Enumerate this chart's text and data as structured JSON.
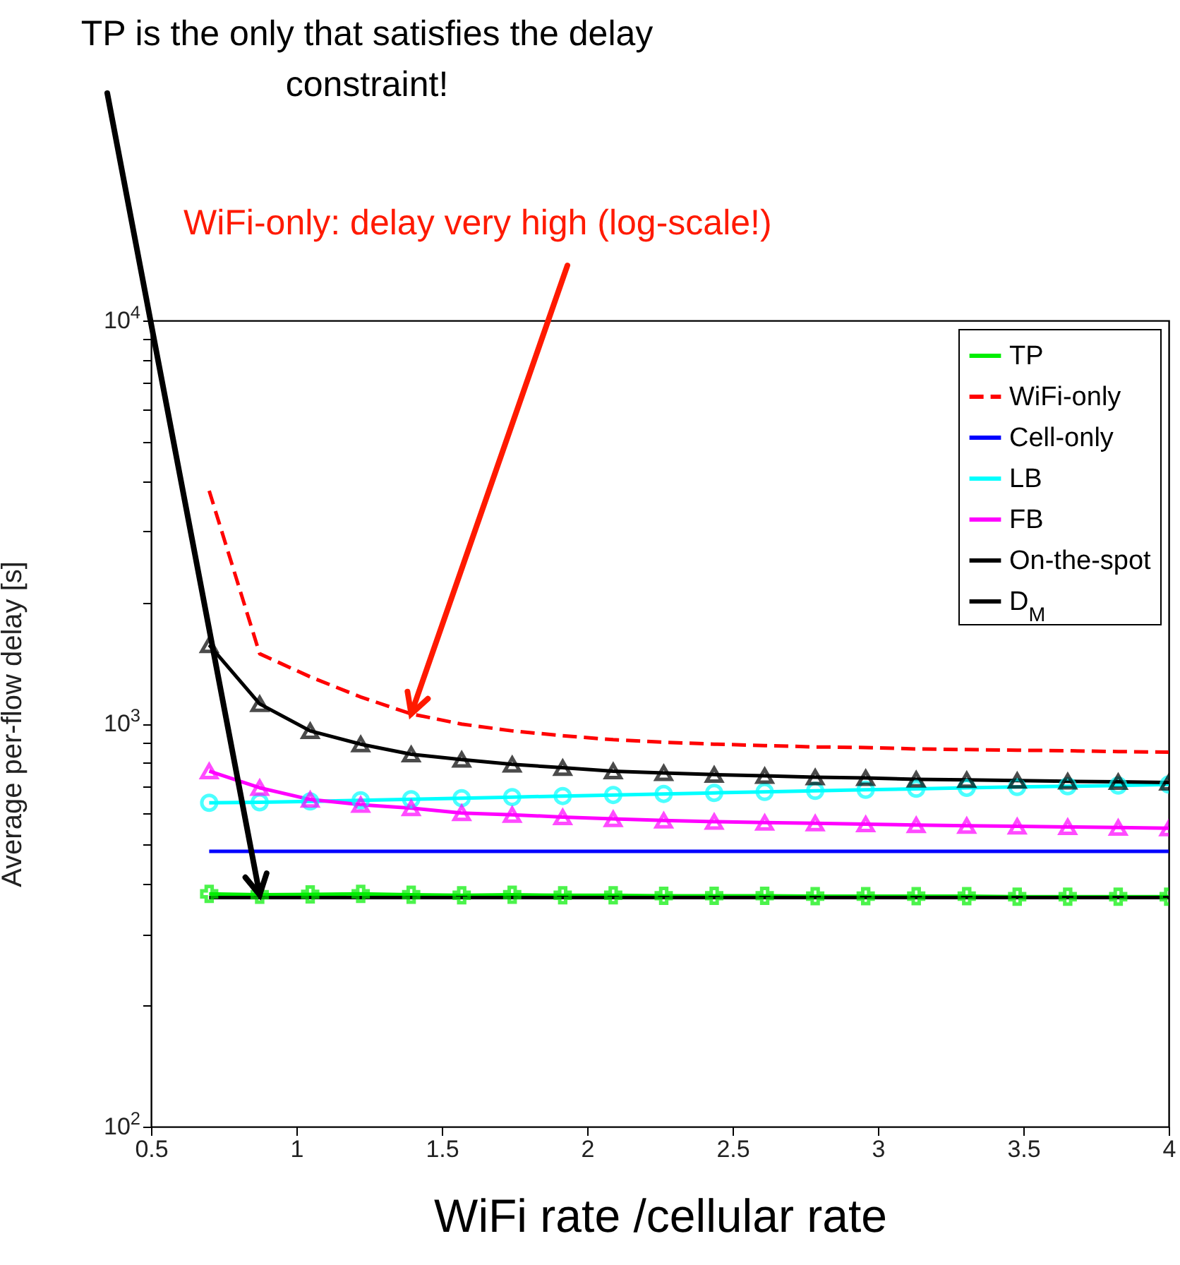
{
  "chart_data": {
    "type": "line",
    "xlabel": "WiFi rate /cellular rate",
    "ylabel": "Average per-flow delay [s]",
    "x": [
      0.7,
      0.8737,
      1.0474,
      1.2211,
      1.3947,
      1.5684,
      1.7421,
      1.9158,
      2.0895,
      2.2632,
      2.4368,
      2.6105,
      2.7842,
      2.9579,
      3.1316,
      3.3053,
      3.4789,
      3.6526,
      3.8263,
      4.0
    ],
    "series": [
      {
        "name": "TP",
        "color": "#00ee00",
        "marker": "cross",
        "line_style": "solid",
        "values": [
          378,
          376,
          377,
          378,
          376,
          375,
          376,
          375,
          375,
          374,
          374,
          374,
          373,
          373,
          373,
          373,
          372,
          372,
          372,
          372
        ]
      },
      {
        "name": "WiFi-only",
        "color": "#ff0000",
        "marker": "none",
        "line_style": "dashed",
        "values": [
          3780,
          1490,
          1306,
          1164,
          1057,
          997,
          959,
          933,
          912,
          899,
          889,
          882,
          875,
          872,
          865,
          862,
          859,
          856,
          852,
          849
        ]
      },
      {
        "name": "Cell-only",
        "color": "#0000ff",
        "marker": "none",
        "line_style": "solid",
        "values": [
          482,
          482,
          482,
          482,
          482,
          482,
          482,
          482,
          482,
          482,
          482,
          482,
          482,
          482,
          482,
          482,
          482,
          482,
          482,
          482
        ]
      },
      {
        "name": "LB",
        "color": "#00ffff",
        "marker": "circle",
        "line_style": "solid",
        "values": [
          636,
          638,
          641,
          645,
          649,
          653,
          657,
          661,
          665,
          669,
          673,
          677,
          681,
          685,
          689,
          693,
          696,
          699,
          702,
          706
        ]
      },
      {
        "name": "FB",
        "color": "#ff00ff",
        "marker": "triangle",
        "line_style": "solid",
        "values": [
          762,
          693,
          648,
          629,
          617,
          600,
          594,
          586,
          580,
          575,
          571,
          568,
          566,
          563,
          560,
          558,
          556,
          554,
          552,
          550
        ]
      },
      {
        "name": "On-the-spot",
        "color": "#000000",
        "marker": "triangle",
        "line_style": "solid",
        "values": [
          1567,
          1119,
          959,
          889,
          839,
          814,
          792,
          777,
          762,
          754,
          747,
          742,
          736,
          733,
          727,
          725,
          722,
          719,
          717,
          714
        ]
      },
      {
        "name": "D$_{M}$",
        "color": "#000000",
        "marker": "none",
        "line_style": "solid",
        "values": [
          370,
          370,
          370,
          370,
          370,
          370,
          370,
          370,
          370,
          370,
          370,
          370,
          370,
          370,
          370,
          370,
          370,
          370,
          370,
          370
        ]
      }
    ],
    "log": "y",
    "xlim": [
      0.5,
      4
    ],
    "xticks": [
      0.5,
      1,
      1.5,
      2,
      2.5,
      3,
      3.5,
      4
    ],
    "ylim": [
      100,
      10000
    ],
    "yticks": [
      {
        "value": 100,
        "label": "10$^{2}$"
      },
      {
        "value": 200,
        "label": null
      },
      {
        "value": 300,
        "label": null
      },
      {
        "value": 400,
        "label": null
      },
      {
        "value": 500,
        "label": null
      },
      {
        "value": 600,
        "label": null
      },
      {
        "value": 700,
        "label": null
      },
      {
        "value": 800,
        "label": null
      },
      {
        "value": 900,
        "label": null
      },
      {
        "value": 1000,
        "label": "10$^{3}$"
      },
      {
        "value": 2000,
        "label": null
      },
      {
        "value": 3000,
        "label": null
      },
      {
        "value": 4000,
        "label": null
      },
      {
        "value": 5000,
        "label": null
      },
      {
        "value": 6000,
        "label": null
      },
      {
        "value": 7000,
        "label": null
      },
      {
        "value": 8000,
        "label": null
      },
      {
        "value": 9000,
        "label": null
      },
      {
        "value": 10000,
        "label": "10$^{4}$"
      }
    ],
    "grid": false,
    "legend": "top right",
    "annotations": [
      {
        "text": "TP is the only that satisfies the delay constraint!",
        "x": 0.8737,
        "y": 376
      },
      {
        "text": "WiFi-only: delay very high (log-scale!)",
        "x": 1.3947,
        "y": 1057
      }
    ]
  }
}
